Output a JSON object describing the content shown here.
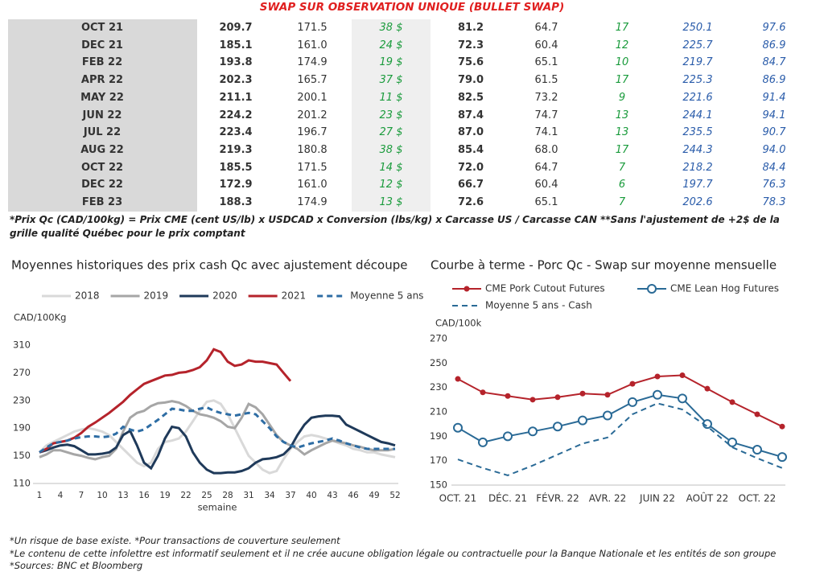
{
  "header": {
    "title": "SWAP SUR OBSERVATION UNIQUE (BULLET SWAP)"
  },
  "table": {
    "rows": [
      [
        "OCT 21",
        "209.7",
        "171.5",
        "38 $",
        "81.2",
        "64.7",
        "17",
        "250.1",
        "97.6"
      ],
      [
        "DEC 21",
        "185.1",
        "161.0",
        "24 $",
        "72.3",
        "60.4",
        "12",
        "225.7",
        "86.9"
      ],
      [
        "FEB 22",
        "193.8",
        "174.9",
        "19 $",
        "75.6",
        "65.1",
        "10",
        "219.7",
        "84.7"
      ],
      [
        "APR 22",
        "202.3",
        "165.7",
        "37 $",
        "79.0",
        "61.5",
        "17",
        "225.3",
        "86.9"
      ],
      [
        "MAY 22",
        "211.1",
        "200.1",
        "11 $",
        "82.5",
        "73.2",
        "9",
        "221.6",
        "91.4"
      ],
      [
        "JUN 22",
        "224.2",
        "201.2",
        "23 $",
        "87.4",
        "74.7",
        "13",
        "244.1",
        "94.1"
      ],
      [
        "JUL 22",
        "223.4",
        "196.7",
        "27 $",
        "87.0",
        "74.1",
        "13",
        "235.5",
        "90.7"
      ],
      [
        "AUG 22",
        "219.3",
        "180.8",
        "38 $",
        "85.4",
        "68.0",
        "17",
        "244.3",
        "94.0"
      ],
      [
        "OCT 22",
        "185.5",
        "171.5",
        "14 $",
        "72.0",
        "64.7",
        "7",
        "218.2",
        "84.4"
      ],
      [
        "DEC 22",
        "172.9",
        "161.0",
        "12 $",
        "66.7",
        "60.4",
        "6",
        "197.7",
        "76.3"
      ],
      [
        "FEB 23",
        "188.3",
        "174.9",
        "13 $",
        "72.6",
        "65.1",
        "7",
        "202.6",
        "78.3"
      ]
    ],
    "note": "*Prix Qc (CAD/100kg) = Prix CME (cent US/lb) x USDCAD x Conversion (lbs/kg) x Carcasse US / Carcasse CAN **Sans l'ajustement de +2$ de la grille qualité Québec pour le prix comptant"
  },
  "chart_data": [
    {
      "type": "line",
      "title": "Moyennes historiques des prix cash Qc avec ajustement découpe",
      "y_label": "CAD/100Kg",
      "x_label": "semaine",
      "x": [
        1,
        2,
        3,
        4,
        5,
        6,
        7,
        8,
        9,
        10,
        11,
        12,
        13,
        14,
        15,
        16,
        17,
        18,
        19,
        20,
        21,
        22,
        23,
        24,
        25,
        26,
        27,
        28,
        29,
        30,
        31,
        32,
        33,
        34,
        35,
        36,
        37,
        38,
        39,
        40,
        41,
        42,
        43,
        44,
        45,
        46,
        47,
        48,
        49,
        50,
        51,
        52
      ],
      "xlim": [
        1,
        52
      ],
      "xticks": [
        1,
        4,
        7,
        10,
        13,
        16,
        19,
        22,
        25,
        28,
        31,
        34,
        37,
        40,
        43,
        46,
        49,
        52
      ],
      "ylim": [
        110,
        310
      ],
      "yticks": [
        110,
        150,
        190,
        230,
        270,
        310
      ],
      "series": [
        {
          "name": "2018",
          "color": "#d9d9d9",
          "values": [
            155,
            165,
            170,
            175,
            180,
            185,
            188,
            190,
            188,
            185,
            180,
            170,
            160,
            150,
            140,
            135,
            140,
            160,
            170,
            172,
            175,
            185,
            200,
            215,
            228,
            230,
            225,
            210,
            190,
            170,
            150,
            140,
            130,
            125,
            128,
            145,
            160,
            170,
            178,
            180,
            178,
            175,
            172,
            168,
            165,
            160,
            158,
            155,
            155,
            152,
            150,
            148
          ]
        },
        {
          "name": "2019",
          "color": "#a6a6a6",
          "values": [
            148,
            152,
            158,
            158,
            155,
            152,
            150,
            147,
            145,
            148,
            150,
            160,
            185,
            205,
            212,
            215,
            222,
            226,
            227,
            229,
            227,
            222,
            215,
            210,
            208,
            205,
            200,
            192,
            190,
            205,
            225,
            220,
            210,
            195,
            180,
            170,
            165,
            160,
            152,
            158,
            163,
            168,
            172,
            170,
            168,
            165,
            163,
            160,
            158,
            158,
            158,
            160
          ]
        },
        {
          "name": "2020",
          "color": "#1f3a5a",
          "values": [
            155,
            158,
            162,
            165,
            166,
            164,
            158,
            152,
            152,
            153,
            155,
            162,
            180,
            186,
            165,
            140,
            132,
            150,
            175,
            192,
            190,
            178,
            155,
            140,
            130,
            125,
            125,
            126,
            126,
            128,
            132,
            140,
            145,
            146,
            148,
            152,
            162,
            180,
            195,
            205,
            207,
            208,
            208,
            207,
            195,
            190,
            185,
            180,
            175,
            170,
            168,
            165
          ]
        },
        {
          "name": "2021",
          "color": "#b5232b",
          "values": [
            155,
            160,
            168,
            170,
            172,
            176,
            183,
            192,
            198,
            205,
            212,
            220,
            228,
            238,
            246,
            254,
            258,
            262,
            266,
            267,
            270,
            271,
            274,
            278,
            288,
            304,
            300,
            286,
            280,
            282,
            288,
            286,
            286,
            284,
            282,
            270,
            258,
            null,
            null,
            null,
            null,
            null,
            null,
            null,
            null,
            null,
            null,
            null,
            null,
            null,
            null,
            null
          ]
        },
        {
          "name": "Moyenne 5 ans",
          "color": "#2e6da4",
          "dashed": true,
          "values": [
            155,
            162,
            168,
            170,
            172,
            175,
            177,
            178,
            178,
            177,
            178,
            182,
            192,
            188,
            185,
            188,
            195,
            202,
            210,
            218,
            217,
            215,
            215,
            218,
            220,
            215,
            212,
            210,
            208,
            210,
            212,
            210,
            200,
            190,
            178,
            170,
            165,
            162,
            165,
            168,
            170,
            172,
            175,
            172,
            168,
            165,
            162,
            160,
            160,
            160,
            160,
            160
          ]
        }
      ]
    },
    {
      "type": "line",
      "title": "Courbe à terme - Porc Qc - Swap sur moyenne mensuelle",
      "y_label": "CAD/100k",
      "categories": [
        "OCT. 21",
        null,
        "DÉC. 21",
        null,
        "FÉVR. 22",
        null,
        "AVR. 22",
        null,
        "JUIN 22",
        null,
        "AOÛT 22",
        null,
        "OCT. 22",
        null
      ],
      "ylim": [
        150,
        270
      ],
      "yticks": [
        150,
        170,
        190,
        210,
        230,
        250,
        270
      ],
      "series": [
        {
          "name": "CME Pork Cutout Futures",
          "color": "#b5232b",
          "marker": "filled",
          "values": [
            237,
            226,
            223,
            220,
            222,
            225,
            224,
            233,
            239,
            240,
            229,
            218,
            208,
            198
          ]
        },
        {
          "name": "CME Lean Hog Futures",
          "color": "#2a6a96",
          "marker": "hollow",
          "values": [
            197,
            185,
            190,
            194,
            198,
            203,
            207,
            218,
            224,
            221,
            200,
            185,
            179,
            173
          ]
        },
        {
          "name": "Moyenne 5 ans - Cash",
          "color": "#2a6a96",
          "dashed": true,
          "values": [
            171,
            164,
            158,
            166,
            175,
            184,
            189,
            208,
            217,
            212,
            198,
            181,
            172,
            164
          ]
        }
      ]
    }
  ],
  "footer": {
    "notes": [
      "*Un risque de base existe. *Pour transactions de couverture seulement",
      "*Le contenu de cette infolettre est informatif seulement et il ne crée aucune obligation légale ou contractuelle pour la Banque Nationale et les entités de son groupe",
      "*Sources: BNC et Bloomberg"
    ]
  }
}
